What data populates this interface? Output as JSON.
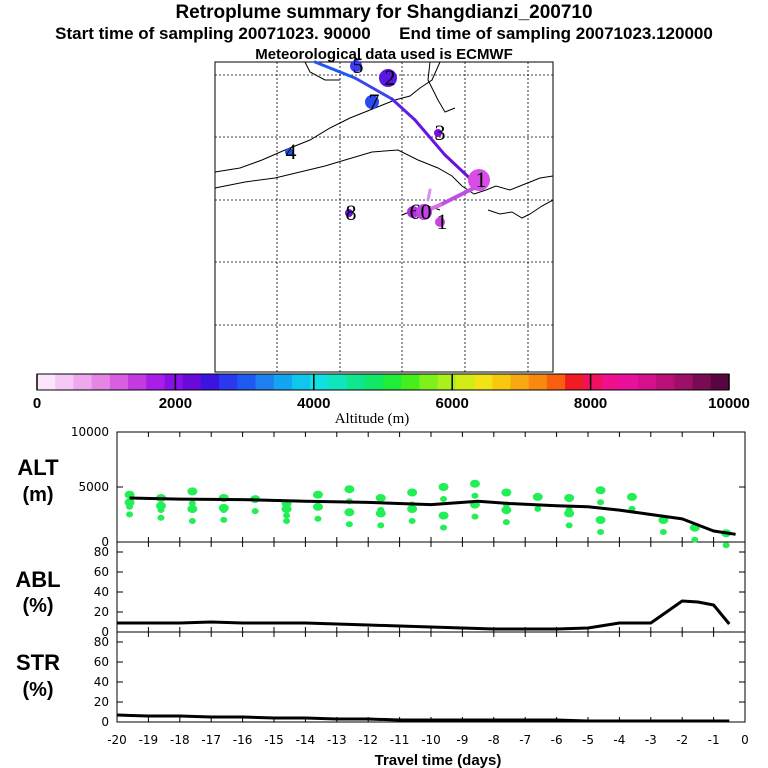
{
  "header": {
    "title": "Retroplume summary for Shangdianzi_200710",
    "subtitle_start": "Start time of sampling 20071023. 90000",
    "subtitle_end": "End time of sampling 20071023.120000",
    "met": "Meteorological data used is ECMWF"
  },
  "colorbar": {
    "tick_labels": [
      "0",
      "2000",
      "4000",
      "6000",
      "8000",
      "10000"
    ],
    "label": "Altitude (m)",
    "colors": [
      "#fbe6fb",
      "#f6c8f6",
      "#eea8ee",
      "#e486e4",
      "#d85fe0",
      "#c23ae0",
      "#a81ee6",
      "#8a10e8",
      "#6a0ad8",
      "#3c14e0",
      "#2a38ee",
      "#1e5af0",
      "#1e80f0",
      "#14a4f0",
      "#10c6ec",
      "#10e2e4",
      "#10e6bc",
      "#10e68e",
      "#10e866",
      "#22ec3a",
      "#46ee1e",
      "#7ef01a",
      "#aaf01c",
      "#d2ec18",
      "#f0e414",
      "#f8c810",
      "#f8a810",
      "#f88810",
      "#f86010",
      "#f01c22",
      "#f0105e",
      "#f0108c",
      "#e8109c",
      "#d4108c",
      "#b81078",
      "#9c1066",
      "#7a0a52",
      "#580640"
    ]
  },
  "map": {
    "markers": [
      {
        "label": "1",
        "color": "#d84ee4",
        "size": 11
      },
      {
        "label": "2",
        "color": "#5818e0",
        "size": 9
      },
      {
        "label": "3",
        "color": "#7a10e0",
        "size": 4
      },
      {
        "label": "4",
        "color": "#2050f0",
        "size": 4
      },
      {
        "label": "5",
        "color": "#3c3cf0",
        "size": 6
      },
      {
        "label": "6",
        "color": "#b030e0",
        "size": 6
      },
      {
        "label": "7",
        "color": "#2c48f0",
        "size": 7
      },
      {
        "label": "8",
        "color": "#6a14e0",
        "size": 4
      },
      {
        "label": "0",
        "color": "#c044e4",
        "size": 8
      },
      {
        "label": "1",
        "color": "#c844e4",
        "size": 5
      }
    ]
  },
  "chart_data": [
    {
      "type": "scatter",
      "title": "ALT",
      "ylabel": "(m)",
      "xlabel": "Travel time (days)",
      "xlim": [
        -20,
        0
      ],
      "ylim": [
        0,
        10000
      ],
      "yticks": [
        "10000",
        "5000",
        "0"
      ],
      "x_ticks": [
        "-20",
        "-19",
        "-18",
        "-17",
        "-16",
        "-15",
        "-14",
        "-13",
        "-12",
        "-11",
        "-10",
        "-9",
        "-8",
        "-7",
        "-6",
        "-5",
        "-4",
        "-3",
        "-2",
        "-1",
        "0"
      ],
      "series": [
        {
          "name": "mean altitude",
          "color": "#000000",
          "x": [
            -19.6,
            -18,
            -16,
            -14,
            -12,
            -10,
            -8.5,
            -7.5,
            -6,
            -5,
            -4,
            -3,
            -2,
            -1,
            -0.3
          ],
          "values": [
            4000,
            3900,
            3850,
            3700,
            3600,
            3400,
            3700,
            3500,
            3300,
            3200,
            2900,
            2500,
            2100,
            1000,
            700
          ]
        },
        {
          "name": "plume particles",
          "color": "#22ee55",
          "x": [
            -19.6,
            -19.6,
            -18.6,
            -18.6,
            -17.6,
            -17.6,
            -16.6,
            -16.6,
            -15.6,
            -14.6,
            -14.6,
            -13.6,
            -13.6,
            -12.6,
            -12.6,
            -11.6,
            -11.6,
            -10.6,
            -10.6,
            -9.6,
            -9.6,
            -8.6,
            -8.6,
            -7.6,
            -7.6,
            -6.6,
            -5.6,
            -5.6,
            -4.6,
            -4.6,
            -3.6,
            -2.6,
            -1.6,
            -0.6
          ],
          "values": [
            4300,
            3600,
            4000,
            3300,
            4600,
            3000,
            4000,
            3100,
            3900,
            3500,
            3000,
            4300,
            3200,
            4800,
            2700,
            4000,
            2600,
            4500,
            3000,
            5000,
            2400,
            5300,
            3400,
            4500,
            2900,
            4100,
            4000,
            2600,
            4700,
            2000,
            4100,
            2000,
            1300,
            800
          ]
        }
      ]
    },
    {
      "type": "line",
      "title": "ABL",
      "ylabel": "(%)",
      "xlim": [
        -20,
        0
      ],
      "ylim": [
        0,
        90
      ],
      "yticks": [
        "80",
        "60",
        "40",
        "20",
        "0"
      ],
      "series": [
        {
          "name": "ABL fraction",
          "color": "#000000",
          "x": [
            -20,
            -19,
            -18,
            -17,
            -16,
            -15,
            -14,
            -13,
            -12,
            -11,
            -10,
            -9,
            -8,
            -7,
            -6,
            -5,
            -4,
            -3,
            -2.5,
            -2,
            -1.5,
            -1,
            -0.5
          ],
          "values": [
            9,
            9,
            9,
            10,
            9,
            9,
            9,
            8,
            7,
            6,
            5,
            4,
            3,
            3,
            3,
            4,
            9,
            9,
            20,
            31,
            30,
            27,
            8
          ]
        }
      ]
    },
    {
      "type": "line",
      "title": "STR",
      "ylabel": "(%)",
      "xlim": [
        -20,
        0
      ],
      "ylim": [
        0,
        90
      ],
      "yticks": [
        "80",
        "60",
        "40",
        "20",
        "0"
      ],
      "series": [
        {
          "name": "stratosphere fraction",
          "color": "#000000",
          "x": [
            -20,
            -19,
            -18,
            -17,
            -16,
            -15,
            -14,
            -13,
            -12,
            -11,
            -10,
            -9,
            -8,
            -7,
            -6,
            -5,
            -4,
            -3,
            -2,
            -1,
            -0.5
          ],
          "values": [
            7,
            6,
            6,
            5,
            5,
            4,
            4,
            3,
            3,
            2,
            2,
            2,
            2,
            2,
            2,
            1,
            1,
            1,
            1,
            1,
            1
          ]
        }
      ]
    }
  ]
}
